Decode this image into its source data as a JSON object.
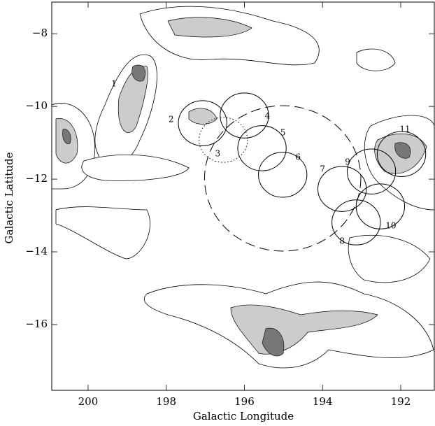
{
  "chart_data": {
    "type": "map",
    "x_label": "Galactic Longitude",
    "y_label": "Galactic Latitude",
    "xlim": [
      200.93,
      191.14
    ],
    "ylim": [
      -17.81,
      -7.13
    ],
    "xticks": [
      200,
      198,
      196,
      194,
      192
    ],
    "yticks": [
      {
        "value": -8,
        "label": "−8"
      },
      {
        "value": -10,
        "label": "−10"
      },
      {
        "value": -12,
        "label": "−12"
      },
      {
        "value": -14,
        "label": "−14"
      },
      {
        "value": -16,
        "label": "−16"
      }
    ],
    "shell": {
      "x": 195.02,
      "y": -11.98,
      "radius": 2.0,
      "style": "dashed"
    },
    "regions": [
      {
        "label": "1"
      },
      {
        "label": "2",
        "x": 197.07,
        "y": -10.46,
        "radius": 0.62,
        "style": "solid"
      },
      {
        "label": "3",
        "x": 196.54,
        "y": -10.92,
        "radius": 0.62,
        "style": "dotted"
      },
      {
        "label": "4",
        "x": 196.0,
        "y": -10.25,
        "radius": 0.62,
        "style": "solid"
      },
      {
        "label": "5",
        "x": 195.55,
        "y": -11.15,
        "radius": 0.62,
        "style": "solid"
      },
      {
        "label": "6",
        "x": 195.02,
        "y": -11.88,
        "radius": 0.62,
        "style": "solid"
      },
      {
        "label": "7",
        "x": 193.5,
        "y": -12.27,
        "radius": 0.62,
        "style": "solid"
      },
      {
        "label": "8",
        "x": 193.14,
        "y": -13.19,
        "radius": 0.62,
        "style": "solid"
      },
      {
        "label": "9",
        "x": 192.75,
        "y": -11.79,
        "radius": 0.62,
        "style": "solid"
      },
      {
        "label": "10",
        "x": 192.52,
        "y": -12.75,
        "radius": 0.62,
        "style": "solid"
      },
      {
        "label": "11",
        "x": 191.98,
        "y": -11.31,
        "radius": 0.62,
        "style": "solid"
      }
    ]
  }
}
